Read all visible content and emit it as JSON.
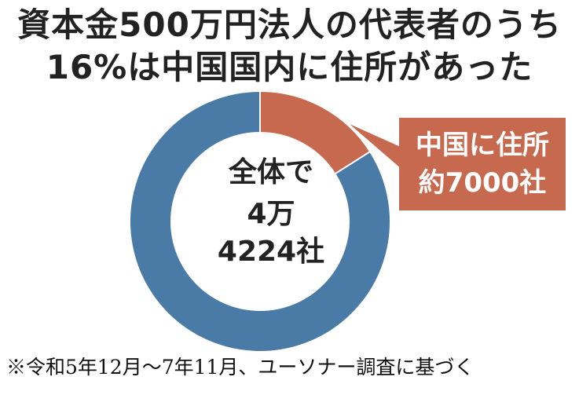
{
  "title_lines": [
    "資本金500万円法人の代表者のうち",
    "16%は中国国内に住所があった"
  ],
  "center_label": {
    "line1": "全体で",
    "line2": "4万",
    "line3": "4224社"
  },
  "callout": {
    "line1": "中国に住所",
    "line2": "約7000社"
  },
  "footnote": "※令和5年12月～7年11月、ユーソナー調査に基づく",
  "colors": {
    "primary_segment": "#4a7aa6",
    "highlight_segment": "#c7694f",
    "text": "#222222"
  },
  "chart_data": {
    "type": "pie",
    "donut": true,
    "slices": [
      {
        "label": "中国に住所",
        "value": 16,
        "color": "#c7694f"
      },
      {
        "label": "",
        "value": 84,
        "color": "#4a7aa6"
      }
    ],
    "total_label": "全体で4万4224社"
  }
}
